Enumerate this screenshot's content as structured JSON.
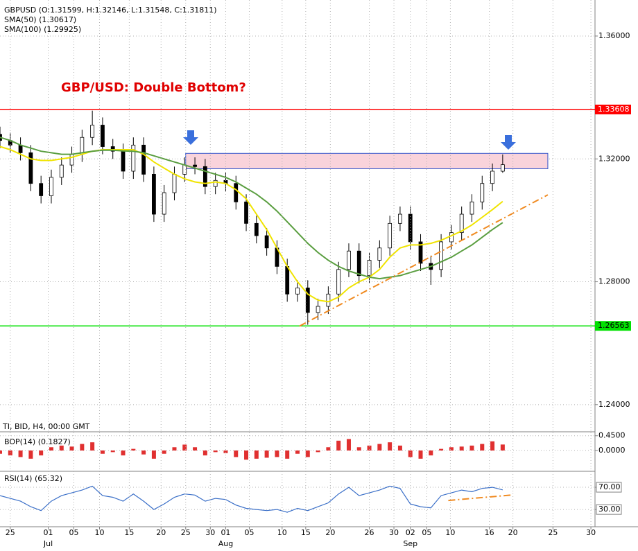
{
  "chart_data": [
    {
      "type": "candlestick",
      "title": "GBP/USD: Double Bottom?",
      "label": "GBPUSD (O:1.31599, H:1.32146, L:1.31548, C:1.31811)",
      "info": "TI, BID, H4, 00:00 GMT",
      "color": "#000000",
      "xlim": [
        0,
        58
      ],
      "ylim": [
        1.2368,
        1.3706
      ],
      "yticks": [
        {
          "value": 1.24,
          "label": "1.24000"
        },
        {
          "value": 1.28,
          "label": "1.28000"
        },
        {
          "value": 1.32,
          "label": "1.32000"
        },
        {
          "value": 1.36,
          "label": "1.36000"
        }
      ],
      "open": [
        1.328,
        1.326,
        1.3245,
        1.322,
        1.312,
        1.308,
        1.314,
        1.318,
        1.3215,
        1.327,
        1.331,
        1.324,
        1.3225,
        1.316,
        1.3245,
        1.315,
        1.302,
        1.309,
        1.315,
        1.318,
        1.3175,
        1.311,
        1.313,
        1.312,
        1.306,
        1.299,
        1.295,
        1.291,
        1.285,
        1.276,
        1.278,
        1.27,
        1.272,
        1.276,
        1.284,
        1.29,
        1.282,
        1.287,
        1.291,
        1.299,
        1.302,
        1.293,
        1.286,
        1.284,
        1.293,
        1.296,
        1.302,
        1.306,
        1.312,
        1.31599
      ],
      "high": [
        1.3305,
        1.3285,
        1.327,
        1.3245,
        1.3145,
        1.3165,
        1.3205,
        1.324,
        1.3295,
        1.3357,
        1.3335,
        1.3265,
        1.325,
        1.327,
        1.327,
        1.3175,
        1.3115,
        1.3175,
        1.3205,
        1.3205,
        1.32,
        1.3155,
        1.3155,
        1.3145,
        1.3085,
        1.3015,
        1.2975,
        1.2935,
        1.2875,
        1.2805,
        1.2805,
        1.2745,
        1.2785,
        1.2865,
        1.2925,
        1.2925,
        1.2895,
        1.2935,
        1.3015,
        1.3045,
        1.3045,
        1.2955,
        1.2885,
        1.2955,
        1.2985,
        1.3045,
        1.3085,
        1.3145,
        1.3185,
        1.32146
      ],
      "low": [
        1.3235,
        1.322,
        1.3195,
        1.3095,
        1.3055,
        1.3055,
        1.3115,
        1.3155,
        1.319,
        1.3245,
        1.3215,
        1.32,
        1.3135,
        1.3135,
        1.3125,
        1.2995,
        1.2995,
        1.3065,
        1.3125,
        1.315,
        1.3085,
        1.3085,
        1.3095,
        1.3035,
        1.2965,
        1.2925,
        1.2885,
        1.2825,
        1.2735,
        1.2735,
        1.266,
        1.2675,
        1.2695,
        1.2735,
        1.2815,
        1.2795,
        1.2795,
        1.2845,
        1.2885,
        1.2965,
        1.2905,
        1.2835,
        1.279,
        1.2815,
        1.2905,
        1.2935,
        1.2995,
        1.3035,
        1.3095,
        1.31548
      ],
      "close": [
        1.326,
        1.3245,
        1.322,
        1.312,
        1.308,
        1.314,
        1.318,
        1.3215,
        1.327,
        1.331,
        1.324,
        1.3225,
        1.316,
        1.3245,
        1.315,
        1.302,
        1.309,
        1.315,
        1.318,
        1.3175,
        1.311,
        1.313,
        1.312,
        1.306,
        1.299,
        1.295,
        1.291,
        1.285,
        1.276,
        1.278,
        1.27,
        1.272,
        1.276,
        1.284,
        1.29,
        1.282,
        1.287,
        1.291,
        1.299,
        1.302,
        1.293,
        1.286,
        1.284,
        1.293,
        1.296,
        1.302,
        1.306,
        1.312,
        1.316,
        1.31811
      ],
      "series": [
        {
          "name": "SMA(50) (1.30617)",
          "color": "#f0e400",
          "values": [
            1.324,
            1.323,
            1.3215,
            1.32,
            1.3195,
            1.3195,
            1.32,
            1.3205,
            1.3215,
            1.3225,
            1.323,
            1.323,
            1.323,
            1.323,
            1.3215,
            1.319,
            1.317,
            1.315,
            1.3135,
            1.3125,
            1.312,
            1.3125,
            1.312,
            1.31,
            1.307,
            1.302,
            1.297,
            1.291,
            1.285,
            1.28,
            1.276,
            1.274,
            1.2735,
            1.275,
            1.278,
            1.28,
            1.2815,
            1.284,
            1.288,
            1.291,
            1.292,
            1.292,
            1.2925,
            1.2935,
            1.295,
            1.2965,
            1.2985,
            1.301,
            1.3035,
            1.30617
          ]
        },
        {
          "name": "SMA(100) (1.29925)",
          "color": "#5a9e40",
          "values": [
            1.327,
            1.326,
            1.3245,
            1.3235,
            1.3225,
            1.322,
            1.3215,
            1.3215,
            1.322,
            1.3225,
            1.3228,
            1.3228,
            1.3226,
            1.3225,
            1.322,
            1.321,
            1.32,
            1.319,
            1.318,
            1.317,
            1.316,
            1.315,
            1.314,
            1.3125,
            1.3105,
            1.3085,
            1.306,
            1.303,
            1.2995,
            1.296,
            1.2925,
            1.2895,
            1.287,
            1.285,
            1.2835,
            1.2825,
            1.2815,
            1.281,
            1.2815,
            1.282,
            1.283,
            1.284,
            1.285,
            1.2865,
            1.288,
            1.29,
            1.292,
            1.2945,
            1.297,
            1.29925
          ]
        }
      ],
      "levels": [
        {
          "value": 1.33608,
          "label": "1.33608",
          "color": "#ff0000"
        },
        {
          "value": 1.26563,
          "label": "1.26563",
          "color": "#00e000"
        }
      ],
      "zone": {
        "x": [
          18.1,
          53.4
        ],
        "y": [
          1.3168,
          1.3218
        ],
        "color": "#f9d3db"
      },
      "trendline": {
        "x": [
          29.2,
          53.4
        ],
        "y": [
          1.26557,
          1.3083
        ],
        "color": "#f08a20"
      }
    },
    {
      "type": "bar",
      "label": "BOP(14) (0.1827)",
      "color": "#e03030",
      "xlim": [
        0,
        58
      ],
      "ylim": [
        -0.55,
        0.55
      ],
      "yticks": [
        {
          "value": 0,
          "label": "0.0000"
        },
        {
          "value": 0.45,
          "label": "0.4500"
        }
      ],
      "values": [
        -0.1,
        -0.15,
        -0.2,
        -0.25,
        -0.15,
        0.1,
        0.15,
        0.12,
        0.2,
        0.25,
        -0.1,
        -0.05,
        -0.15,
        0.05,
        -0.12,
        -0.25,
        -0.1,
        0.1,
        0.18,
        0.1,
        -0.15,
        -0.05,
        -0.08,
        -0.2,
        -0.28,
        -0.25,
        -0.22,
        -0.2,
        -0.25,
        -0.1,
        -0.2,
        -0.05,
        0.1,
        0.3,
        0.35,
        0.1,
        0.15,
        0.2,
        0.25,
        0.15,
        -0.2,
        -0.25,
        -0.15,
        0.05,
        0.1,
        0.12,
        0.15,
        0.2,
        0.28,
        0.1827
      ]
    },
    {
      "type": "line",
      "label": "RSI(14) (65.32)",
      "color": "#3a6fc8",
      "xlim": [
        0,
        58
      ],
      "ylim": [
        -1,
        95
      ],
      "yticks": [
        {
          "value": 30,
          "label": "30.00"
        },
        {
          "value": 70,
          "label": "70.00"
        }
      ],
      "values": [
        55,
        50,
        45,
        35,
        28,
        45,
        55,
        60,
        65,
        72,
        55,
        52,
        45,
        58,
        45,
        30,
        40,
        52,
        58,
        56,
        45,
        50,
        48,
        38,
        32,
        30,
        28,
        30,
        25,
        32,
        28,
        35,
        42,
        58,
        70,
        55,
        60,
        65,
        72,
        68,
        40,
        35,
        33,
        55,
        60,
        65,
        62,
        68,
        70,
        65.32
      ],
      "trendline": {
        "x": [
          43.7,
          50
        ],
        "y": [
          46.25,
          56.25
        ],
        "color": "#f08a20"
      },
      "xticks": [
        {
          "value": 1.0,
          "label": "25"
        },
        {
          "value": 4.7,
          "label": "01"
        },
        {
          "value": 7.2,
          "label": "05"
        },
        {
          "value": 9.7,
          "label": "10"
        },
        {
          "value": 12.6,
          "label": "15"
        },
        {
          "value": 15.7,
          "label": "20"
        },
        {
          "value": 18.1,
          "label": "25"
        },
        {
          "value": 20.5,
          "label": "30"
        },
        {
          "value": 22,
          "label": "01"
        },
        {
          "value": 24.3,
          "label": "05"
        },
        {
          "value": 27.5,
          "label": "10"
        },
        {
          "value": 29.8,
          "label": "15"
        },
        {
          "value": 32.2,
          "label": "20"
        },
        {
          "value": 36,
          "label": "26"
        },
        {
          "value": 38.4,
          "label": "30"
        },
        {
          "value": 40,
          "label": "02"
        },
        {
          "value": 41.6,
          "label": "05"
        },
        {
          "value": 43.9,
          "label": "10"
        },
        {
          "value": 47.7,
          "label": "16"
        },
        {
          "value": 50,
          "label": "20"
        },
        {
          "value": 53.9,
          "label": "25"
        },
        {
          "value": 57.6,
          "label": "30"
        }
      ],
      "months": [
        {
          "value": 4.7,
          "label": "Jul"
        },
        {
          "value": 22,
          "label": "Aug"
        },
        {
          "value": 40,
          "label": "Sep"
        }
      ]
    }
  ]
}
